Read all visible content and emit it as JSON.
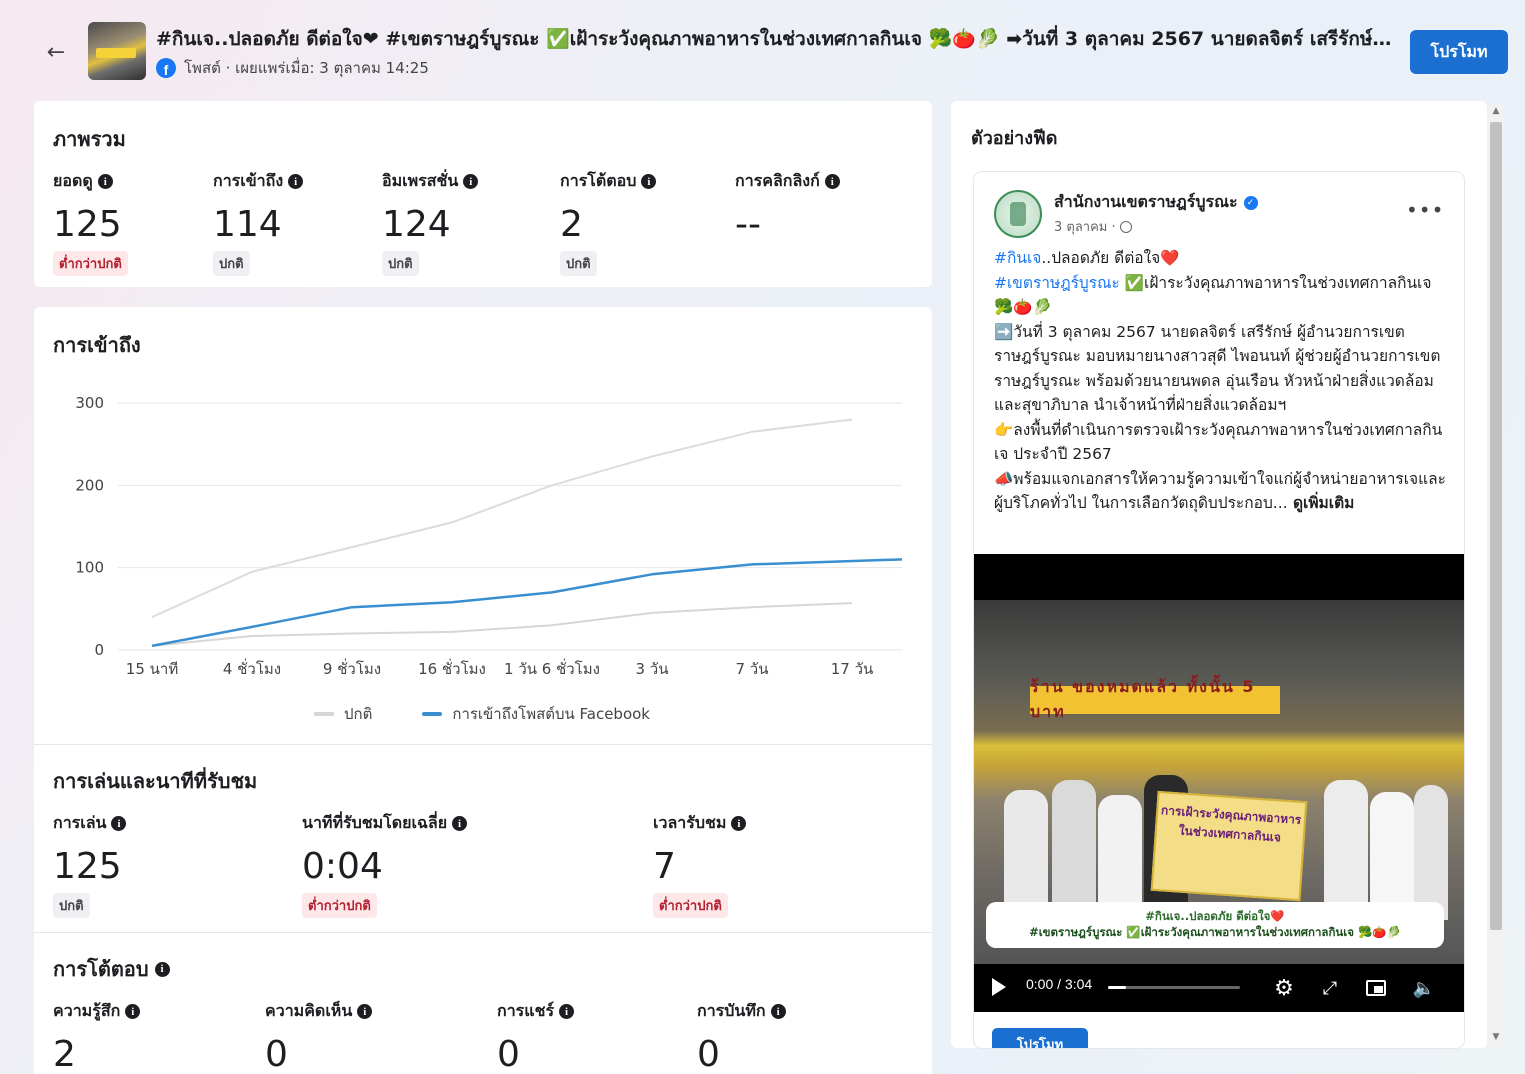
{
  "header": {
    "back_icon": "arrow-left-icon",
    "title": "#กินเจ..ปลอดภัย ดีต่อใจ❤ #เขตราษฎร์บูรณะ ✅เฝ้าระวังคุณภาพอาหารในช่วงเทศกาลกินเจ 🥦🍅🥬 ➡วันที่ 3 ตุลาคม 2567 นายดลจิตร์ เสรีรักษ์ ผู้...",
    "meta": "โพสต์ · เผยแพร่เมื่อ: 3 ตุลาคม 14:25",
    "promote_label": "โปรโมท"
  },
  "overview": {
    "title": "ภาพรวม",
    "metrics": [
      {
        "label": "ยอดดู",
        "value": "125",
        "status": "ต่ำกว่าปกติ",
        "status_type": "low"
      },
      {
        "label": "การเข้าถึง",
        "value": "114",
        "status": "ปกติ",
        "status_type": "normal"
      },
      {
        "label": "อิมเพรสชั่น",
        "value": "124",
        "status": "ปกติ",
        "status_type": "normal"
      },
      {
        "label": "การโต้ตอบ",
        "value": "2",
        "status": "ปกติ",
        "status_type": "normal"
      },
      {
        "label": "การคลิกลิงก์",
        "value": "--",
        "status": "",
        "status_type": ""
      }
    ]
  },
  "reach": {
    "title": "การเข้าถึง",
    "legend": {
      "normal": "ปกติ",
      "facebook": "การเข้าถึงโพสต์บน Facebook"
    }
  },
  "chart_data": {
    "type": "line",
    "title": "การเข้าถึง",
    "xlabel": "",
    "ylabel": "",
    "x": [
      "15 นาที",
      "4 ชั่วโมง",
      "9 ชั่วโมง",
      "16 ชั่วโมง",
      "1 วัน 6 ชั่วโมง",
      "3 วัน",
      "7 วัน",
      "17 วัน"
    ],
    "yticks": [
      0,
      100,
      200,
      300
    ],
    "ylim": [
      0,
      300
    ],
    "grid": true,
    "legend_position": "bottom",
    "colors": {
      "upper": "#dcdcdc",
      "normal": "#d6d6d6",
      "facebook": "#3a8fd0"
    },
    "series": [
      {
        "key": "upper",
        "values": [
          40,
          95,
          125,
          155,
          200,
          235,
          265,
          280
        ]
      },
      {
        "key": "normal",
        "name": "ปกติ",
        "values": [
          5,
          17,
          20,
          22,
          30,
          45,
          52,
          57
        ]
      },
      {
        "key": "facebook",
        "name": "การเข้าถึงโพสต์บน Facebook",
        "values": [
          5,
          28,
          52,
          58,
          70,
          92,
          104,
          110
        ]
      }
    ]
  },
  "playback": {
    "title": "การเล่นและนาทีที่รับชม",
    "metrics": [
      {
        "label": "การเล่น",
        "value": "125",
        "status": "ปกติ",
        "status_type": "normal"
      },
      {
        "label": "นาทีที่รับชมโดยเฉลี่ย",
        "value": "0:04",
        "status": "ต่ำกว่าปกติ",
        "status_type": "low"
      },
      {
        "label": "เวลารับชม",
        "value": "7",
        "status": "ต่ำกว่าปกติ",
        "status_type": "low"
      }
    ]
  },
  "interactions": {
    "title": "การโต้ตอบ",
    "metrics": [
      {
        "label": "ความรู้สึก",
        "value": "2"
      },
      {
        "label": "ความคิดเห็น",
        "value": "0"
      },
      {
        "label": "การแชร์",
        "value": "0"
      },
      {
        "label": "การบันทึก",
        "value": "0"
      }
    ]
  },
  "feed_preview": {
    "title": "ตัวอย่างฟีด",
    "page_name": "สำนักงานเขตราษฎร์บูรณะ",
    "date": "3 ตุลาคม · ",
    "globe_icon": "globe-icon",
    "line1_tag": "#กินเจ",
    "line1_rest": "..ปลอดภัย ดีต่อใจ❤️",
    "line2_tag": "#เขตราษฎร์บูรณะ",
    "line2_rest": " ✅เฝ้าระวังคุณภาพอาหารในช่วงเทศกาลกินเจ 🥦🍅🥬",
    "para1": "➡️วันที่ 3 ตุลาคม 2567 นายดลจิตร์ เสรีรักษ์ ผู้อำนวยการเขตราษฎร์บูรณะ มอบหมายนางสาวสุดี ไพอนนท์ ผู้ช่วยผู้อำนวยการเขตราษฎร์บูรณะ พร้อมด้วยนายนพดล อุ่นเรือน หัวหน้าฝ่ายสิ่งแวดล้อมและสุขาภิบาล นำเจ้าหน้าที่ฝ่ายสิ่งแวดล้อมฯ",
    "para2": "👉ลงพื้นที่ดำเนินการตรวจเฝ้าระวังคุณภาพอาหารในช่วงเทศกาลกินเจ ประจำปี 2567",
    "para3": "📣พร้อมแจกเอกสารให้ความรู้ความเข้าใจแก่ผู้จำหน่ายอาหารเจและผู้บริโภคทั่วไป ในการเลือกวัตถุดิบประกอบ...",
    "see_more": " ดูเพิ่มเติม",
    "video": {
      "shop_sign": "ร้าน ของหมดแล้ว ทั้งนั้น 5 บาท",
      "held_sign": "การเฝ้าระวังคุณภาพอาหาร ในช่วงเทศกาลกินเจ",
      "caption_line1": "#กินเจ..ปลอดภัย ดีต่อใจ❤️",
      "caption_line2": "#เขตราษฎร์บูรณะ ✅เฝ้าระวังคุณภาพอาหารในช่วงเทศกาลกินเจ 🥦🍅🥬",
      "time": "0:00 / 3:04",
      "progress": 0.14
    },
    "promote_mini": "โปรโมท"
  }
}
